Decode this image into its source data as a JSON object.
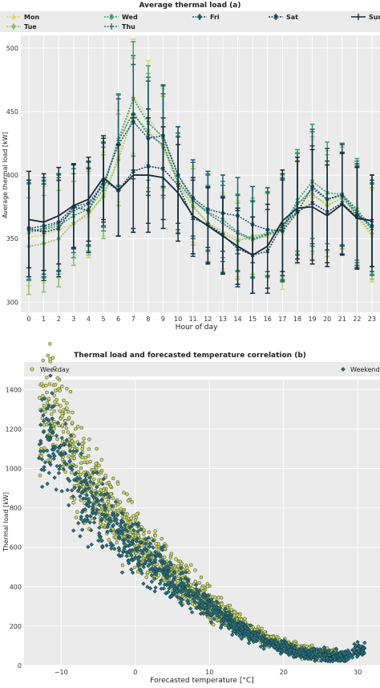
{
  "chart_data": [
    {
      "type": "line",
      "title": "Average thermal load (a)",
      "xlabel": "Hour of day",
      "ylabel": "Average thermal load [kW]",
      "x": [
        0,
        1,
        2,
        3,
        4,
        5,
        6,
        7,
        8,
        9,
        10,
        11,
        12,
        13,
        14,
        15,
        16,
        17,
        18,
        19,
        20,
        21,
        22,
        23
      ],
      "x_ticks": [
        "0",
        "1",
        "2",
        "3",
        "4",
        "5",
        "6",
        "7",
        "8",
        "9",
        "10",
        "11",
        "12",
        "13",
        "14",
        "15",
        "16",
        "17",
        "18",
        "19",
        "20",
        "21",
        "22",
        "23"
      ],
      "y_ticks": [
        "300",
        "350",
        "400",
        "450",
        "500"
      ],
      "ylim": [
        292,
        510
      ],
      "grid": true,
      "legend_position": "top",
      "error_bars": true,
      "series": [
        {
          "name": "Mon",
          "color": "#d6d66a",
          "marker": "triangle",
          "values": [
            351,
            353,
            357,
            362,
            368,
            385,
            415,
            462,
            445,
            428,
            395,
            377,
            362,
            356,
            350,
            349,
            352,
            355,
            370,
            383,
            379,
            384,
            367,
            352
          ],
          "err": [
            38,
            38,
            38,
            33,
            33,
            33,
            36,
            45,
            45,
            40,
            38,
            30,
            30,
            30,
            30,
            30,
            33,
            45,
            40,
            45,
            40,
            40,
            40,
            36
          ]
        },
        {
          "name": "Tue",
          "color": "#8fc06a",
          "marker": "circle",
          "values": [
            344,
            346,
            350,
            362,
            370,
            383,
            412,
            447,
            435,
            422,
            393,
            375,
            362,
            354,
            348,
            352,
            354,
            360,
            378,
            385,
            376,
            382,
            368,
            354
          ],
          "err": [
            38,
            38,
            38,
            33,
            33,
            33,
            36,
            45,
            45,
            40,
            38,
            30,
            30,
            30,
            30,
            30,
            33,
            40,
            40,
            45,
            40,
            40,
            40,
            36
          ]
        },
        {
          "name": "Wed",
          "color": "#3e9c70",
          "marker": "x",
          "values": [
            355,
            357,
            360,
            368,
            373,
            389,
            428,
            460,
            441,
            430,
            400,
            380,
            371,
            365,
            355,
            350,
            354,
            358,
            380,
            395,
            386,
            385,
            373,
            358
          ],
          "err": [
            38,
            38,
            38,
            33,
            33,
            33,
            36,
            45,
            45,
            40,
            38,
            30,
            30,
            30,
            30,
            30,
            33,
            40,
            40,
            45,
            40,
            40,
            40,
            36
          ]
        },
        {
          "name": "Thu",
          "color": "#2e7d78",
          "marker": "plus",
          "values": [
            356,
            358,
            362,
            372,
            377,
            392,
            427,
            449,
            432,
            424,
            395,
            380,
            370,
            362,
            354,
            349,
            353,
            357,
            377,
            389,
            381,
            385,
            371,
            357
          ],
          "err": [
            38,
            38,
            38,
            33,
            33,
            33,
            36,
            45,
            45,
            40,
            38,
            30,
            30,
            30,
            30,
            30,
            33,
            40,
            40,
            45,
            40,
            40,
            40,
            36
          ]
        },
        {
          "name": "Fri",
          "color": "#205b6b",
          "marker": "circle",
          "values": [
            358,
            360,
            363,
            375,
            378,
            393,
            424,
            442,
            429,
            431,
            400,
            382,
            373,
            370,
            368,
            361,
            357,
            356,
            371,
            391,
            381,
            384,
            369,
            360
          ],
          "err": [
            38,
            38,
            38,
            33,
            33,
            33,
            36,
            45,
            45,
            40,
            38,
            30,
            30,
            30,
            30,
            30,
            33,
            40,
            40,
            45,
            40,
            40,
            40,
            36
          ]
        },
        {
          "name": "Sat",
          "color": "#1d3f58",
          "marker": "x",
          "values": [
            358,
            355,
            358,
            375,
            372,
            396,
            388,
            403,
            407,
            405,
            392,
            366,
            361,
            353,
            342,
            337,
            340,
            361,
            371,
            378,
            371,
            378,
            367,
            364
          ],
          "err": [
            38,
            38,
            38,
            33,
            33,
            33,
            36,
            45,
            45,
            40,
            38,
            30,
            30,
            30,
            30,
            30,
            33,
            40,
            40,
            45,
            40,
            40,
            40,
            36
          ]
        },
        {
          "name": "Sun",
          "color": "#172c3c",
          "marker": "none",
          "values": [
            365,
            363,
            368,
            376,
            381,
            398,
            388,
            400,
            400,
            398,
            386,
            368,
            360,
            352,
            344,
            337,
            344,
            364,
            374,
            375,
            368,
            377,
            366,
            364
          ],
          "err": [
            38,
            38,
            38,
            33,
            33,
            33,
            36,
            45,
            45,
            40,
            38,
            30,
            30,
            30,
            30,
            30,
            33,
            40,
            40,
            45,
            40,
            40,
            40,
            36
          ]
        }
      ]
    },
    {
      "type": "scatter",
      "title": "Thermal load and forecasted temperature correlation (b)",
      "xlabel": "Forecasted temperature [°C]",
      "ylabel": "Thermal load [kW]",
      "xlim": [
        -15,
        33
      ],
      "ylim": [
        0,
        1450
      ],
      "x_ticks": [
        "−10",
        "0",
        "10",
        "20",
        "30"
      ],
      "y_ticks": [
        "0",
        "200",
        "400",
        "600",
        "800",
        "1000",
        "1200",
        "1400"
      ],
      "grid": true,
      "legend_position": "top",
      "series": [
        {
          "name": "Weekday",
          "color": "#c9d46a",
          "marker": "circle",
          "points": [
            [
              -13,
              1170
            ],
            [
              -12,
              1400
            ],
            [
              -11,
              1300
            ],
            [
              -10,
              1240
            ],
            [
              -8,
              1020
            ],
            [
              -6,
              920
            ],
            [
              -4,
              820
            ],
            [
              -2,
              720
            ],
            [
              0,
              640
            ],
            [
              2,
              560
            ],
            [
              4,
              500
            ],
            [
              6,
              430
            ],
            [
              8,
              380
            ],
            [
              10,
              310
            ],
            [
              12,
              260
            ],
            [
              14,
              210
            ],
            [
              16,
              170
            ],
            [
              18,
              130
            ],
            [
              20,
              100
            ],
            [
              22,
              80
            ],
            [
              24,
              65
            ],
            [
              26,
              55
            ],
            [
              28,
              45
            ]
          ]
        },
        {
          "name": "Weekend",
          "color": "#2a6f7a",
          "marker": "diamond",
          "points": [
            [
              -13,
              1160
            ],
            [
              -12,
              1180
            ],
            [
              -11,
              1120
            ],
            [
              -10,
              1050
            ],
            [
              -8,
              900
            ],
            [
              -6,
              820
            ],
            [
              -4,
              740
            ],
            [
              -2,
              660
            ],
            [
              0,
              590
            ],
            [
              2,
              520
            ],
            [
              4,
              460
            ],
            [
              6,
              400
            ],
            [
              8,
              350
            ],
            [
              10,
              290
            ],
            [
              12,
              240
            ],
            [
              14,
              190
            ],
            [
              16,
              150
            ],
            [
              18,
              115
            ],
            [
              20,
              90
            ],
            [
              22,
              70
            ],
            [
              24,
              60
            ],
            [
              26,
              50
            ],
            [
              28,
              40
            ],
            [
              30,
              80
            ],
            [
              31,
              85
            ]
          ]
        }
      ]
    }
  ]
}
